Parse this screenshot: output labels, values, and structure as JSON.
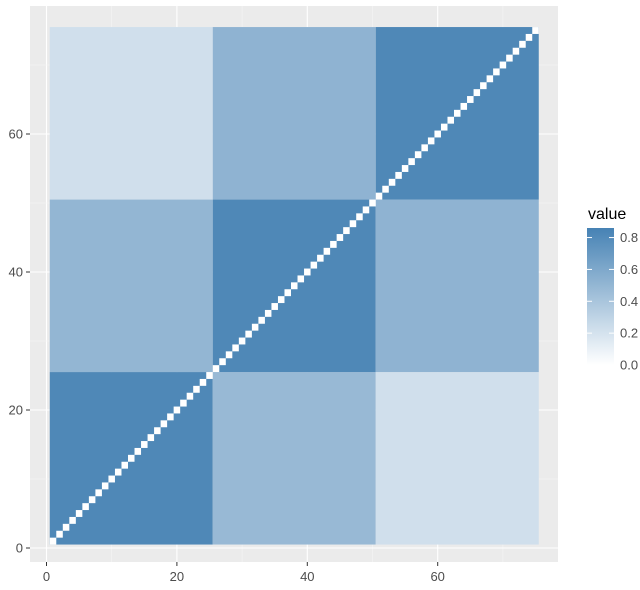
{
  "chart_data": {
    "type": "heatmap",
    "n": 75,
    "xlim": [
      -0.5,
      75.5
    ],
    "ylim": [
      -0.5,
      75.5
    ],
    "x_ticks": [
      0,
      20,
      40,
      60
    ],
    "y_ticks": [
      0,
      20,
      40,
      60
    ],
    "x_tick_labels": [
      "0",
      "20",
      "40",
      "60"
    ],
    "y_tick_labels": [
      "0",
      "20",
      "40",
      "60"
    ],
    "xlabel": "",
    "ylabel": "",
    "grid": true,
    "diagonal_value": 0,
    "blocks": [
      {
        "x_range": [
          1,
          25
        ],
        "y_range": [
          1,
          25
        ],
        "value": 0.82
      },
      {
        "x_range": [
          26,
          50
        ],
        "y_range": [
          1,
          25
        ],
        "value": 0.48
      },
      {
        "x_range": [
          51,
          75
        ],
        "y_range": [
          1,
          25
        ],
        "value": 0.22
      },
      {
        "x_range": [
          1,
          25
        ],
        "y_range": [
          26,
          50
        ],
        "value": 0.5
      },
      {
        "x_range": [
          26,
          50
        ],
        "y_range": [
          26,
          50
        ],
        "value": 0.82
      },
      {
        "x_range": [
          51,
          75
        ],
        "y_range": [
          26,
          50
        ],
        "value": 0.52
      },
      {
        "x_range": [
          1,
          25
        ],
        "y_range": [
          51,
          75
        ],
        "value": 0.22
      },
      {
        "x_range": [
          26,
          50
        ],
        "y_range": [
          51,
          75
        ],
        "value": 0.52
      },
      {
        "x_range": [
          51,
          75
        ],
        "y_range": [
          51,
          75
        ],
        "value": 0.82
      }
    ],
    "legend": {
      "title": "value",
      "position": "right",
      "min": 0,
      "max": 0.86,
      "breaks": [
        0.0,
        0.2,
        0.4,
        0.6,
        0.8
      ],
      "labels": [
        "0.0",
        "0.2",
        "0.4",
        "0.6",
        "0.8"
      ]
    },
    "colors": {
      "low": "#ffffff",
      "high": "#4682b4",
      "panel_background": "#ebebeb",
      "grid_major": "#ffffff",
      "grid_minor": "#f5f5f5"
    }
  }
}
